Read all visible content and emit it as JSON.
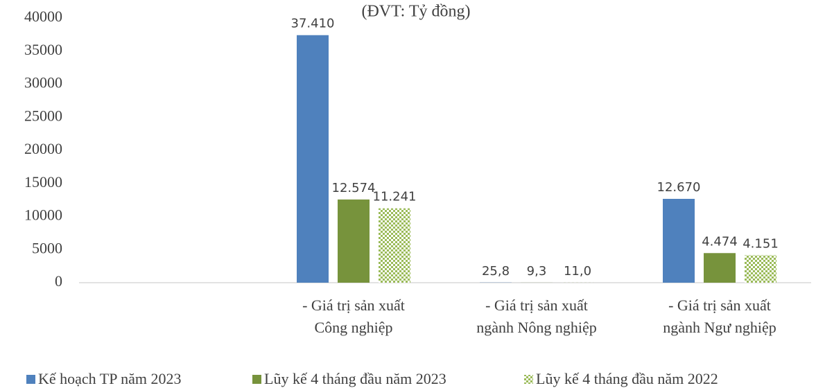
{
  "chart_data": {
    "type": "bar",
    "title": "(ĐVT: Tỷ đồng)",
    "categories": [
      null,
      "- Giá trị sản xuất\nCông nghiệp",
      "- Giá trị sản xuất\nngành Nông nghiệp",
      "- Giá trị sản xuất\nngành Ngư nghiệp"
    ],
    "series": [
      {
        "name": "Kế hoạch TP năm 2023",
        "color": "#4f81bd",
        "values": [
          null,
          37410,
          25.8,
          12670
        ],
        "value_labels": [
          null,
          "37.410",
          "25,8",
          "12.670"
        ]
      },
      {
        "name": "Lũy kế 4 tháng đầu năm 2023",
        "color": "#77933c",
        "values": [
          null,
          12574,
          9.3,
          4474
        ],
        "value_labels": [
          null,
          "12.574",
          "9,3",
          "4.474"
        ]
      },
      {
        "name": "Lũy kế 4 tháng đầu năm 2022",
        "color": "#9bbb59",
        "pattern": "checker",
        "values": [
          null,
          11241,
          11.0,
          4151
        ],
        "value_labels": [
          null,
          "11.241",
          "11,0",
          "4.151"
        ]
      }
    ],
    "ylim": [
      0,
      40000
    ],
    "yticks": [
      0,
      5000,
      10000,
      15000,
      20000,
      25000,
      30000,
      35000,
      40000
    ],
    "grid": false,
    "legend": "bottom"
  }
}
